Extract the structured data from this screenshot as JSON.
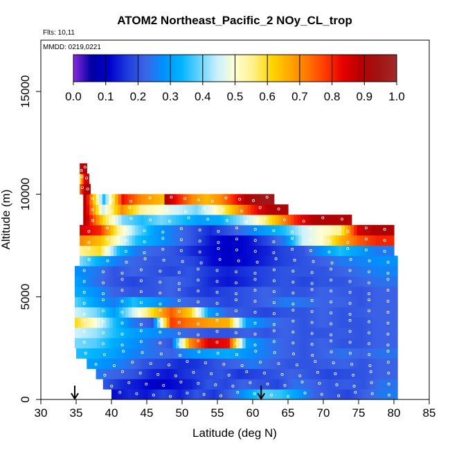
{
  "chart_data": {
    "type": "heatmap",
    "title": "ATOM2 Northeast_Pacific_2 NOy_CL_trop",
    "flights_label": "Flts: 10,11",
    "dates_label": "MMDD: 0219,0221",
    "xlabel": "Latitude (deg N)",
    "ylabel": "Altitude (m)",
    "xlim": [
      30,
      85
    ],
    "ylim": [
      0,
      17500
    ],
    "x_ticks": [
      "30",
      "35",
      "40",
      "45",
      "50",
      "55",
      "60",
      "65",
      "70",
      "75",
      "80",
      "85"
    ],
    "y_ticks": [
      "0",
      "5000",
      "10000",
      "15000"
    ],
    "colorbar": {
      "min": 0.0,
      "max": 1.0,
      "tick_labels": [
        "0.0",
        "0.1",
        "0.2",
        "0.3",
        "0.4",
        "0.5",
        "0.6",
        "0.7",
        "0.8",
        "0.9",
        "1.0"
      ],
      "colors": [
        "#8a2be2",
        "#0000a0",
        "#0000cd",
        "#1e3cdc",
        "#3c64e6",
        "#0090ff",
        "#00b4ff",
        "#64d2ff",
        "#c8f0ff",
        "#ffffd2",
        "#fff08c",
        "#ffd700",
        "#ffaa00",
        "#ff7800",
        "#ff3c00",
        "#e60000",
        "#b40000",
        "#a01414",
        "#a52a2a"
      ]
    },
    "markers": [
      {
        "name": "arrow-35",
        "lat": 34.8
      },
      {
        "name": "arrow-61",
        "lat": 61.2
      }
    ],
    "rows": [
      {
        "alt": [
          0,
          500
        ],
        "x0": 40.0,
        "x1": 80.5,
        "vals": [
          0.12,
          0.15,
          0.13,
          0.18,
          0.14,
          0.2,
          0.16,
          0.22,
          0.3,
          0.38,
          0.36,
          0.3,
          0.22,
          0.2,
          0.18,
          0.22,
          0.25
        ]
      },
      {
        "alt": [
          500,
          1000
        ],
        "x0": 38.8,
        "x1": 80.5,
        "vals": [
          0.2,
          0.15,
          0.13,
          0.1,
          0.12,
          0.14,
          0.2,
          0.18,
          0.22,
          0.2,
          0.18,
          0.24,
          0.22,
          0.2,
          0.21,
          0.2,
          0.24
        ]
      },
      {
        "alt": [
          1000,
          1500
        ],
        "x0": 37.8,
        "x1": 80.5,
        "vals": [
          0.25,
          0.22,
          0.2,
          0.15,
          0.13,
          0.16,
          0.18,
          0.2,
          0.16,
          0.18,
          0.2,
          0.22,
          0.2,
          0.18,
          0.19,
          0.2,
          0.22
        ]
      },
      {
        "alt": [
          1500,
          2000
        ],
        "x0": 36.5,
        "x1": 80.5,
        "vals": [
          0.3,
          0.28,
          0.25,
          0.2,
          0.18,
          0.15,
          0.16,
          0.2,
          0.22,
          0.25,
          0.22,
          0.2,
          0.2,
          0.21,
          0.22,
          0.2,
          0.22
        ]
      },
      {
        "alt": [
          2000,
          2500
        ],
        "x0": 35.0,
        "x1": 80.5,
        "vals": [
          0.35,
          0.33,
          0.3,
          0.26,
          0.24,
          0.22,
          0.28,
          0.3,
          0.32,
          0.28,
          0.25,
          0.22,
          0.2,
          0.22,
          0.24,
          0.22,
          0.24
        ]
      },
      {
        "alt": [
          2500,
          3000
        ],
        "x0": 34.8,
        "x1": 80.5,
        "vals": [
          0.4,
          0.38,
          0.32,
          0.28,
          0.24,
          0.2,
          0.7,
          0.85,
          0.82,
          0.3,
          0.25,
          0.22,
          0.2,
          0.22,
          0.2,
          0.2,
          0.22
        ]
      },
      {
        "alt": [
          3000,
          3500
        ],
        "x0": 34.8,
        "x1": 80.5,
        "vals": [
          0.45,
          0.42,
          0.35,
          0.3,
          0.28,
          0.25,
          0.22,
          0.2,
          0.2,
          0.22,
          0.2,
          0.22,
          0.2,
          0.2,
          0.21,
          0.2,
          0.22
        ]
      },
      {
        "alt": [
          3500,
          4000
        ],
        "x0": 34.8,
        "x1": 80.5,
        "vals": [
          0.6,
          0.5,
          0.35,
          0.25,
          0.2,
          0.78,
          0.72,
          0.68,
          0.66,
          0.3,
          0.25,
          0.22,
          0.2,
          0.22,
          0.2,
          0.2,
          0.22
        ]
      },
      {
        "alt": [
          4000,
          4500
        ],
        "x0": 34.8,
        "x1": 80.5,
        "vals": [
          0.45,
          0.4,
          0.3,
          0.45,
          0.6,
          0.75,
          0.62,
          0.3,
          0.22,
          0.2,
          0.18,
          0.2,
          0.2,
          0.22,
          0.2,
          0.21,
          0.22
        ]
      },
      {
        "alt": [
          4500,
          5000
        ],
        "x0": 34.8,
        "x1": 80.5,
        "vals": [
          0.38,
          0.3,
          0.25,
          0.35,
          0.3,
          0.25,
          0.22,
          0.2,
          0.18,
          0.2,
          0.22,
          0.25,
          0.24,
          0.22,
          0.22,
          0.2,
          0.22
        ]
      },
      {
        "alt": [
          5000,
          5500
        ],
        "x0": 34.8,
        "x1": 80.5,
        "vals": [
          0.32,
          0.28,
          0.22,
          0.2,
          0.2,
          0.22,
          0.18,
          0.16,
          0.18,
          0.2,
          0.22,
          0.2,
          0.2,
          0.22,
          0.21,
          0.2,
          0.22
        ]
      },
      {
        "alt": [
          5500,
          6000
        ],
        "x0": 34.8,
        "x1": 80.5,
        "vals": [
          0.3,
          0.24,
          0.2,
          0.18,
          0.2,
          0.22,
          0.2,
          0.15,
          0.13,
          0.15,
          0.18,
          0.2,
          0.18,
          0.2,
          0.2,
          0.22,
          0.24
        ]
      },
      {
        "alt": [
          6000,
          6500
        ],
        "x0": 34.8,
        "x1": 80.5,
        "vals": [
          0.28,
          0.25,
          0.2,
          0.22,
          0.2,
          0.18,
          0.2,
          0.16,
          0.14,
          0.16,
          0.18,
          0.2,
          0.2,
          0.2,
          0.22,
          0.24,
          0.26
        ]
      },
      {
        "alt": [
          6500,
          7000
        ],
        "x0": 35.5,
        "x1": 80.5,
        "vals": [
          0.4,
          0.32,
          0.25,
          0.22,
          0.2,
          0.2,
          0.18,
          0.12,
          0.1,
          0.12,
          0.15,
          0.18,
          0.2,
          0.22,
          0.25,
          0.26,
          0.28
        ]
      },
      {
        "alt": [
          7000,
          7500
        ],
        "x0": 35.5,
        "x1": 80.0,
        "vals": [
          0.55,
          0.6,
          0.35,
          0.25,
          0.22,
          0.2,
          0.15,
          0.12,
          0.1,
          0.12,
          0.14,
          0.18,
          0.2,
          0.28,
          0.35,
          0.3,
          0.25
        ]
      },
      {
        "alt": [
          7500,
          8000
        ],
        "x0": 35.5,
        "x1": 80.0,
        "vals": [
          0.7,
          0.65,
          0.5,
          0.35,
          0.3,
          0.25,
          0.2,
          0.13,
          0.1,
          0.12,
          0.18,
          0.25,
          0.45,
          0.5,
          0.65,
          0.75,
          0.8
        ]
      },
      {
        "alt": [
          8000,
          8500
        ],
        "x0": 35.5,
        "x1": 80.0,
        "vals": [
          0.85,
          0.8,
          0.55,
          0.4,
          0.3,
          0.25,
          0.2,
          0.15,
          0.2,
          0.25,
          0.3,
          0.35,
          0.45,
          0.5,
          0.55,
          0.85,
          0.9
        ]
      },
      {
        "alt": [
          8500,
          9000
        ],
        "x0": 36.0,
        "x1": 74.0,
        "vals": [
          0.9,
          0.6,
          0.4,
          0.35,
          0.4,
          0.35,
          0.3,
          0.32,
          0.4,
          0.5,
          0.65,
          0.8,
          0.9,
          0.9
        ]
      },
      {
        "alt": [
          9000,
          9500
        ],
        "x0": 36.0,
        "x1": 65.0,
        "vals": [
          0.9,
          0.45,
          0.7,
          0.55,
          0.5,
          0.45,
          0.4,
          0.5,
          0.65,
          0.8,
          0.9
        ]
      },
      {
        "alt": [
          9500,
          10000
        ],
        "x0": 36.0,
        "x1": 63.0,
        "vals": [
          0.9,
          0.35,
          0.82,
          0.7,
          0.65,
          0.55,
          0.55,
          0.75,
          0.85,
          0.9
        ]
      },
      {
        "alt": [
          10000,
          10500
        ],
        "x0": 35.5,
        "x1": 37.0,
        "vals": [
          0.75,
          0.9
        ]
      },
      {
        "alt": [
          10500,
          11000
        ],
        "x0": 35.5,
        "x1": 36.8,
        "vals": [
          0.6,
          0.85
        ]
      },
      {
        "alt": [
          11000,
          11500
        ],
        "x0": 35.5,
        "x1": 36.5,
        "vals": [
          0.85,
          0.9
        ]
      }
    ],
    "extra_blocks": [
      {
        "alt": [
          9500,
          10000
        ],
        "x0": 47.5,
        "x1": 63.0,
        "vals": [
          0.9,
          0.8,
          0.7,
          0.65,
          0.7,
          0.8,
          0.9,
          0.95
        ]
      }
    ]
  }
}
